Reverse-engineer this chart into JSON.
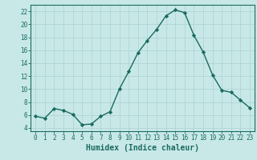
{
  "x": [
    0,
    1,
    2,
    3,
    4,
    5,
    6,
    7,
    8,
    9,
    10,
    11,
    12,
    13,
    14,
    15,
    16,
    17,
    18,
    19,
    20,
    21,
    22,
    23
  ],
  "y": [
    5.8,
    5.5,
    7.0,
    6.7,
    6.1,
    4.5,
    4.6,
    5.8,
    6.5,
    10.0,
    12.7,
    15.6,
    17.5,
    19.2,
    21.3,
    22.2,
    21.8,
    18.3,
    15.7,
    12.2,
    9.8,
    9.5,
    8.3,
    7.1
  ],
  "line_color": "#1a6b5e",
  "marker": "D",
  "marker_size": 2.2,
  "bg_color": "#c8e8e8",
  "grid_color": "#b0d4d4",
  "xlabel": "Humidex (Indice chaleur)",
  "xlim": [
    -0.5,
    23.5
  ],
  "ylim": [
    3.5,
    23.0
  ],
  "yticks": [
    4,
    6,
    8,
    10,
    12,
    14,
    16,
    18,
    20,
    22
  ],
  "xticks": [
    0,
    1,
    2,
    3,
    4,
    5,
    6,
    7,
    8,
    9,
    10,
    11,
    12,
    13,
    14,
    15,
    16,
    17,
    18,
    19,
    20,
    21,
    22,
    23
  ],
  "tick_fontsize": 5.5,
  "xlabel_fontsize": 7.0,
  "linewidth": 1.0
}
